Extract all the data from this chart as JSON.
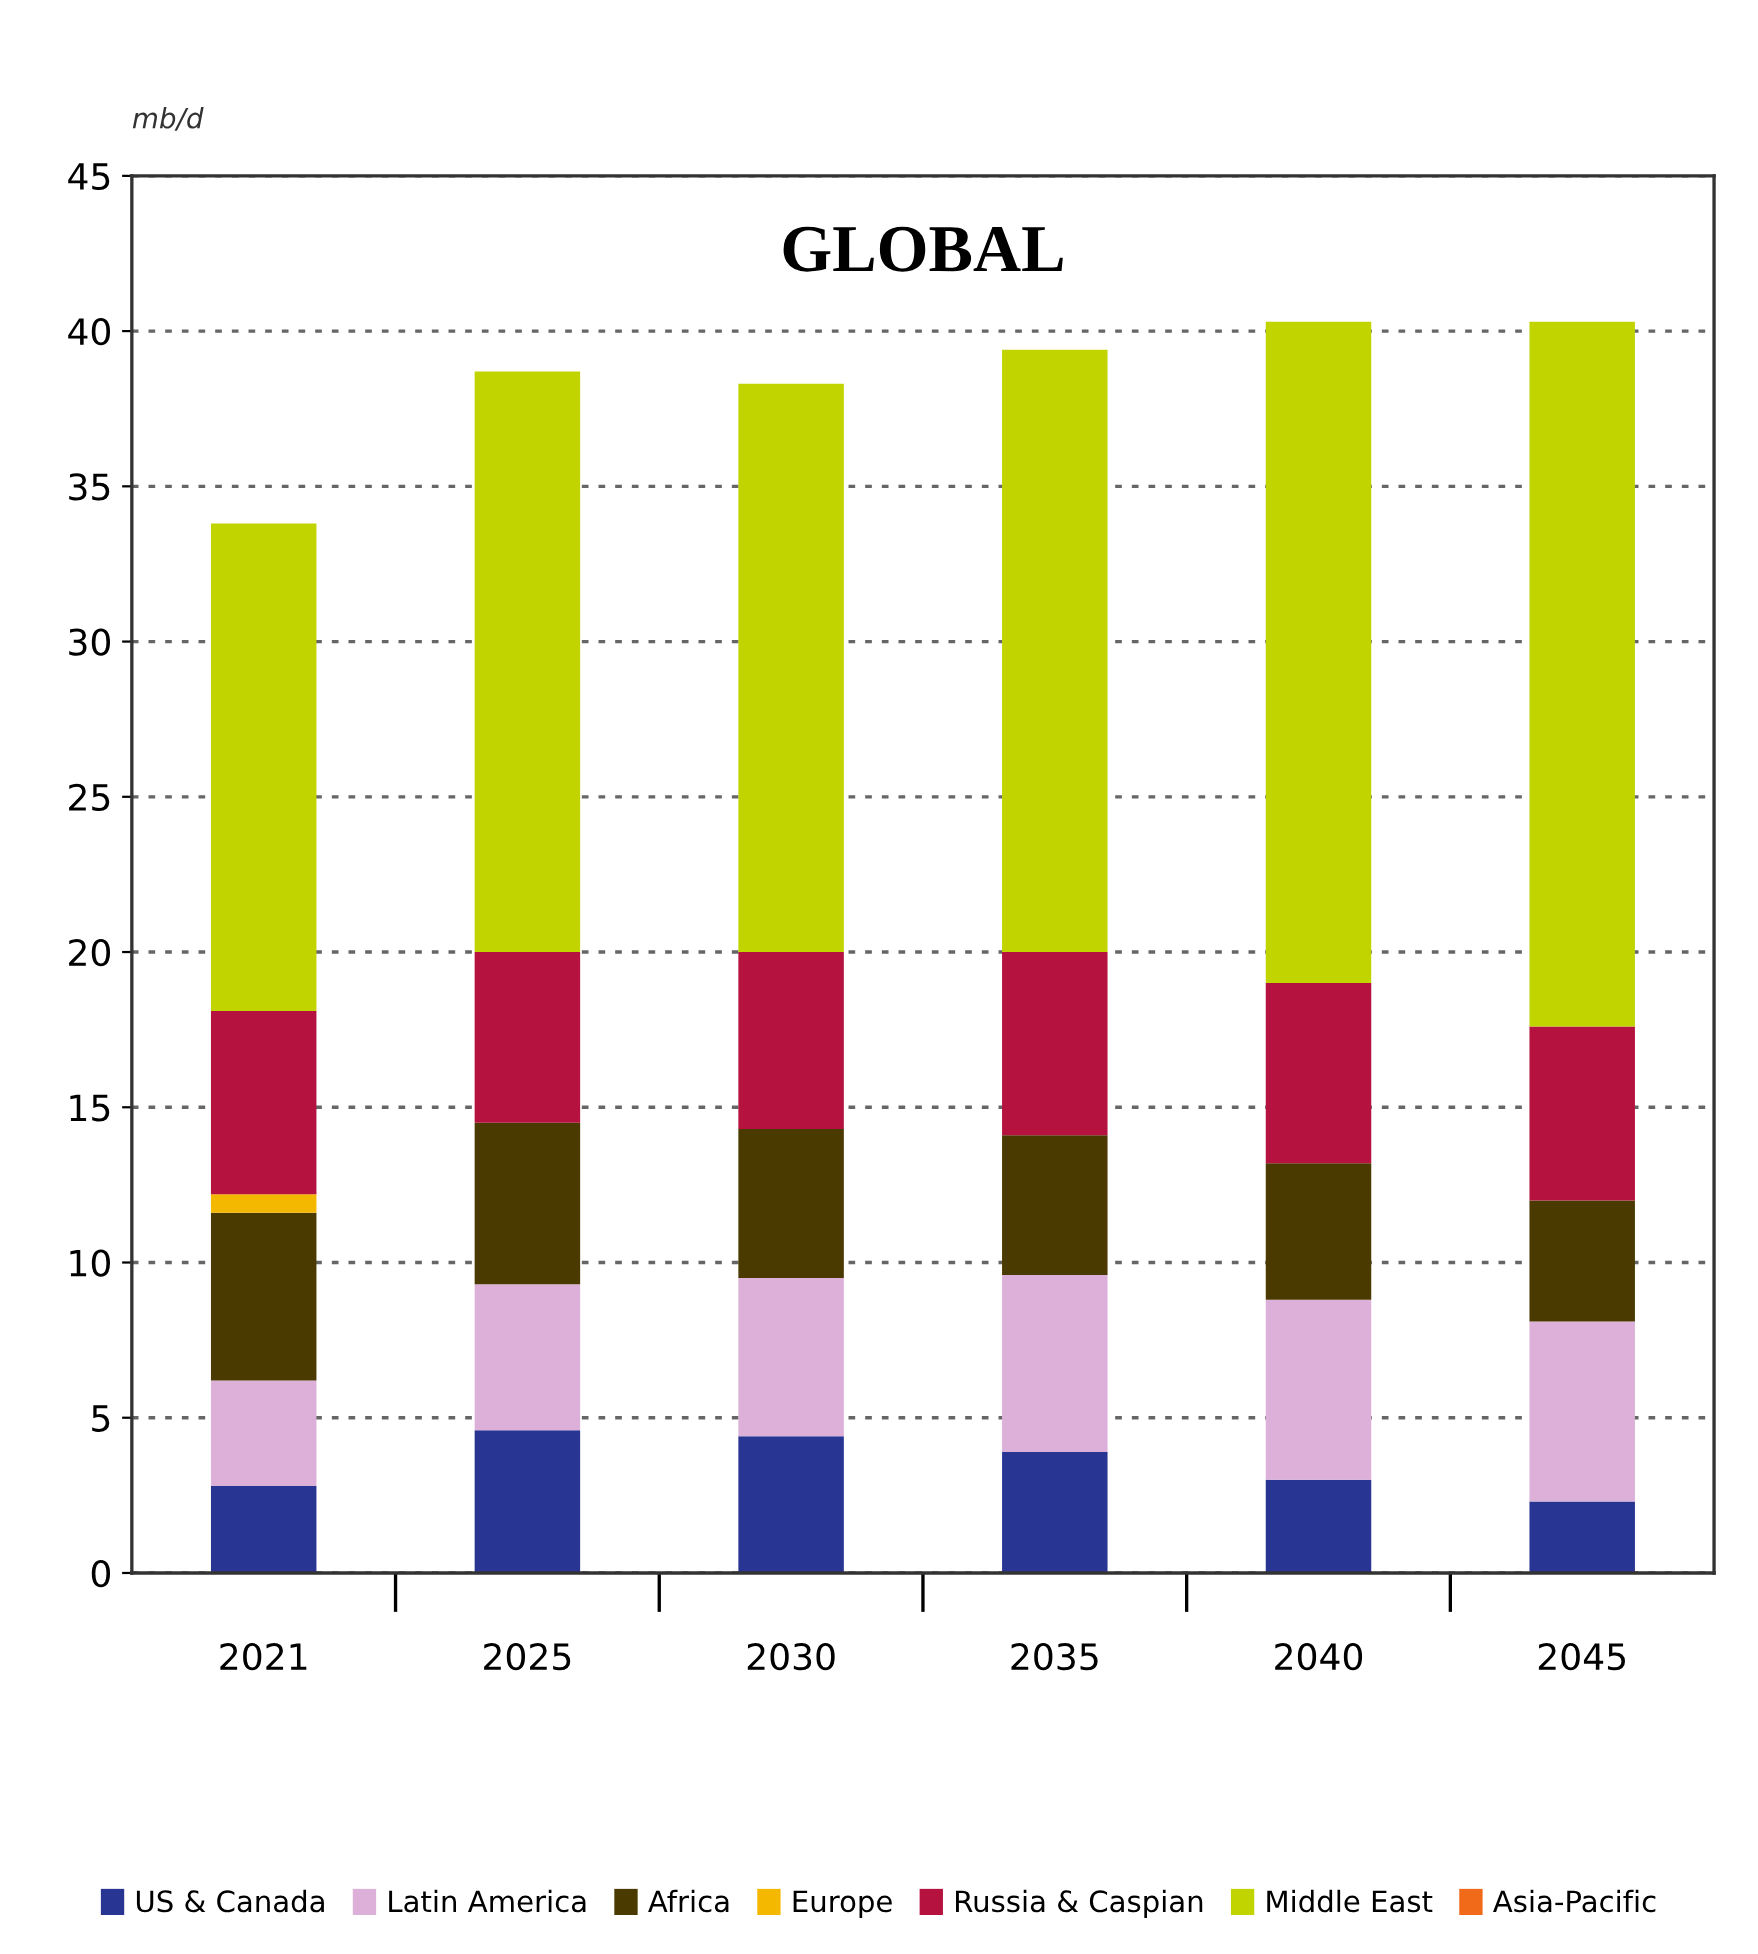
{
  "chart_data": {
    "type": "bar",
    "stacked": true,
    "title": "GLOBAL",
    "ylabel": "mb/d",
    "categories": [
      "2021",
      "2025",
      "2030",
      "2035",
      "2040",
      "2045"
    ],
    "series": [
      {
        "name": "US & Canada",
        "color": "#283593",
        "values": [
          2.8,
          4.6,
          4.4,
          3.9,
          3.0,
          2.3
        ]
      },
      {
        "name": "Latin America",
        "color": "#dcb0d8",
        "values": [
          3.4,
          4.7,
          5.1,
          5.7,
          5.8,
          5.8
        ]
      },
      {
        "name": "Africa",
        "color": "#4a3a00",
        "values": [
          5.4,
          5.2,
          4.8,
          4.5,
          4.4,
          3.9
        ]
      },
      {
        "name": "Europe",
        "color": "#f5b800",
        "values": [
          0.6,
          0,
          0,
          0,
          0,
          0
        ]
      },
      {
        "name": "Russia & Caspian",
        "color": "#b5123f",
        "values": [
          5.9,
          5.5,
          5.7,
          5.9,
          5.8,
          5.6
        ]
      },
      {
        "name": "Middle East",
        "color": "#c2d400",
        "values": [
          15.7,
          18.7,
          18.3,
          19.4,
          21.3,
          22.7
        ]
      },
      {
        "name": "Asia-Pacific",
        "color": "#f06a1a",
        "values": [
          0,
          0,
          0,
          0,
          0,
          0
        ]
      }
    ],
    "ylim": [
      0,
      45
    ],
    "yticks": [
      0,
      5,
      10,
      15,
      20,
      25,
      30,
      35,
      40,
      45
    ],
    "grid": "y",
    "legend": "bottom"
  }
}
